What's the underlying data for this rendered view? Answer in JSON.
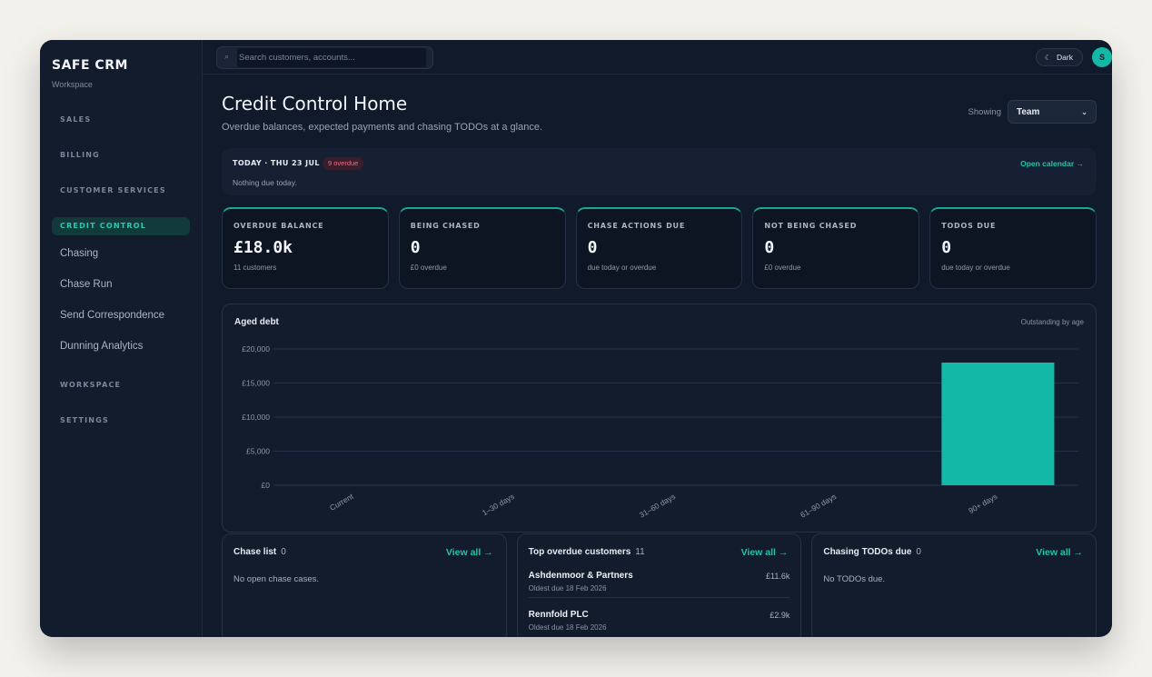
{
  "sidebar": {
    "brand": "SAFE CRM",
    "brand_sub": "Workspace",
    "sections": [
      {
        "label": "SALES"
      },
      {
        "label": "BILLING"
      },
      {
        "label": "CUSTOMER SERVICES"
      },
      {
        "label": "CREDIT CONTROL",
        "active": true
      },
      {
        "label": "WORKSPACE"
      },
      {
        "label": "SETTINGS"
      }
    ],
    "credit_items": [
      "Chasing",
      "Chase Run",
      "Send Correspondence",
      "Dunning Analytics"
    ]
  },
  "topbar": {
    "search_placeholder": "Search customers, accounts...",
    "theme_label": "Dark",
    "avatar_initial": "S"
  },
  "header": {
    "title": "Credit Control Home",
    "subtitle": "Overdue balances, expected payments and chasing TODOs at a glance.",
    "showing_label": "Showing",
    "showing_value": "Team"
  },
  "today": {
    "title": "TODAY · THU 23 JUL",
    "badge": "9 overdue",
    "note": "Nothing due today.",
    "calendar_link": "Open calendar →"
  },
  "kpis": [
    {
      "label": "OVERDUE BALANCE",
      "value": "£18.0k",
      "sub": "11 customers"
    },
    {
      "label": "BEING CHASED",
      "value": "0",
      "sub": "£0 overdue"
    },
    {
      "label": "CHASE ACTIONS DUE",
      "value": "0",
      "sub": "due today or overdue"
    },
    {
      "label": "NOT BEING CHASED",
      "value": "0",
      "sub": "£0 overdue"
    },
    {
      "label": "TODOS DUE",
      "value": "0",
      "sub": "due today or overdue"
    }
  ],
  "chart_data": {
    "type": "bar",
    "title": "Aged debt",
    "subtitle": "Outstanding by age",
    "categories": [
      "Current",
      "1–30 days",
      "31–60 days",
      "61–90 days",
      "90+ days"
    ],
    "values": [
      0,
      0,
      0,
      0,
      18000
    ],
    "yticks": [
      "£0",
      "£5,000",
      "£10,000",
      "£15,000",
      "£20,000"
    ],
    "ylim": [
      0,
      20000
    ],
    "grid": true,
    "bar_color": "#14b8a6"
  },
  "chase_list": {
    "title": "Chase list",
    "count": "0",
    "view_all": "View all →",
    "empty": "No open chase cases."
  },
  "top_overdue": {
    "title": "Top overdue customers",
    "count": "11",
    "view_all": "View all →",
    "rows": [
      {
        "name": "Ashdenmoor & Partners",
        "oldest": "Oldest due 18 Feb 2026",
        "amount": "£11.6k"
      },
      {
        "name": "Rennfold PLC",
        "oldest": "Oldest due 18 Feb 2026",
        "amount": "£2.9k"
      }
    ]
  },
  "todos": {
    "title": "Chasing TODOs due",
    "count": "0",
    "view_all": "View all →",
    "empty": "No TODOs due."
  }
}
